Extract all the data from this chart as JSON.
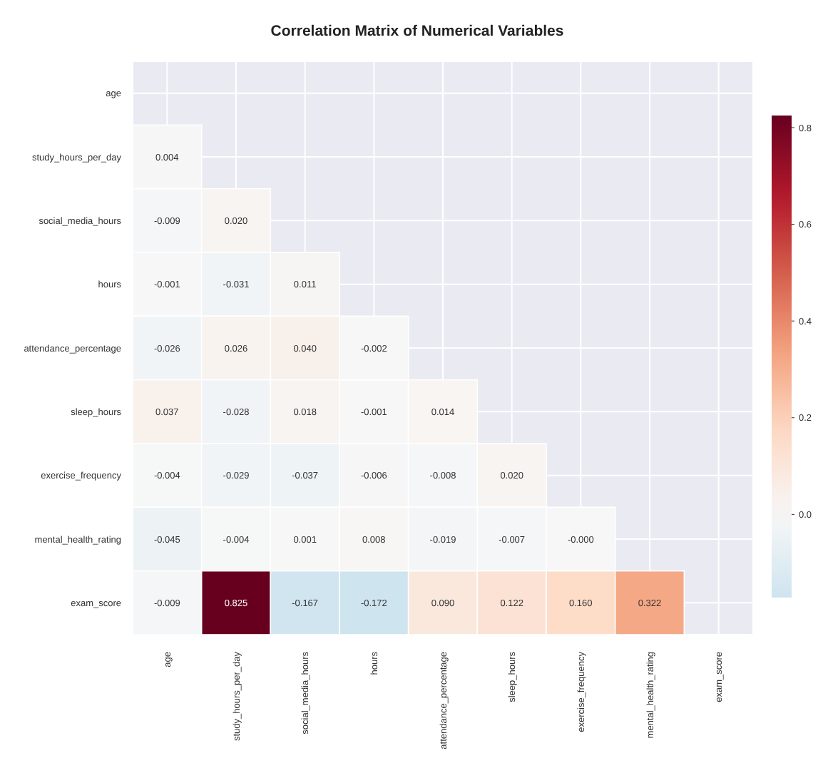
{
  "chart_data": {
    "type": "heatmap",
    "title": "Correlation Matrix of Numerical Variables",
    "categories": [
      "age",
      "study_hours_per_day",
      "social_media_hours",
      "hours",
      "attendance_percentage",
      "sleep_hours",
      "exercise_frequency",
      "mental_health_rating",
      "exam_score"
    ],
    "y_categories": [
      "age",
      "study_hours_per_day",
      "social_media_hours",
      "hours",
      "attendance_percentage",
      "sleep_hours",
      "exercise_frequency",
      "mental_health_rating",
      "exam_score"
    ],
    "cells": [
      [
        null,
        null,
        null,
        null,
        null,
        null,
        null,
        null,
        null
      ],
      [
        0.004,
        null,
        null,
        null,
        null,
        null,
        null,
        null,
        null
      ],
      [
        -0.009,
        0.02,
        null,
        null,
        null,
        null,
        null,
        null,
        null
      ],
      [
        -0.001,
        -0.031,
        0.011,
        null,
        null,
        null,
        null,
        null,
        null
      ],
      [
        -0.026,
        0.026,
        0.04,
        -0.002,
        null,
        null,
        null,
        null,
        null
      ],
      [
        0.037,
        -0.028,
        0.018,
        -0.001,
        0.014,
        null,
        null,
        null,
        null
      ],
      [
        -0.004,
        -0.029,
        -0.037,
        -0.006,
        -0.008,
        0.02,
        null,
        null,
        null
      ],
      [
        -0.045,
        -0.004,
        0.001,
        0.008,
        -0.019,
        -0.007,
        0,
        null,
        null
      ],
      [
        -0.009,
        0.825,
        -0.167,
        -0.172,
        0.09,
        0.122,
        0.16,
        0.322,
        null
      ]
    ],
    "cell_labels": [
      [
        null,
        null,
        null,
        null,
        null,
        null,
        null,
        null,
        null
      ],
      [
        "0.004",
        null,
        null,
        null,
        null,
        null,
        null,
        null,
        null
      ],
      [
        "-0.009",
        "0.020",
        null,
        null,
        null,
        null,
        null,
        null,
        null
      ],
      [
        "-0.001",
        "-0.031",
        "0.011",
        null,
        null,
        null,
        null,
        null,
        null
      ],
      [
        "-0.026",
        "0.026",
        "0.040",
        "-0.002",
        null,
        null,
        null,
        null,
        null
      ],
      [
        "0.037",
        "-0.028",
        "0.018",
        "-0.001",
        "0.014",
        null,
        null,
        null,
        null
      ],
      [
        "-0.004",
        "-0.029",
        "-0.037",
        "-0.006",
        "-0.008",
        "0.020",
        null,
        null,
        null
      ],
      [
        "-0.045",
        "-0.004",
        "0.001",
        "0.008",
        "-0.019",
        "-0.007",
        "-0.000",
        null,
        null
      ],
      [
        "-0.009",
        "0.825",
        "-0.167",
        "-0.172",
        "0.090",
        "0.122",
        "0.160",
        "0.322",
        null
      ]
    ],
    "clim": [
      -0.172,
      0.825
    ],
    "cticks": [
      {
        "value": 0,
        "label": "0.0"
      },
      {
        "value": 0.2,
        "label": "0.2"
      },
      {
        "value": 0.4,
        "label": "0.4"
      },
      {
        "value": 0.6,
        "label": "0.6"
      },
      {
        "value": 0.8,
        "label": "0.8"
      }
    ],
    "grid": true
  }
}
